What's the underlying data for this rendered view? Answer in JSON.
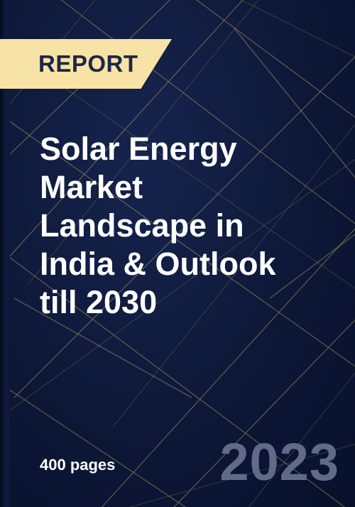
{
  "badge": {
    "label": "REPORT"
  },
  "title": {
    "lines": [
      "Solar Energy",
      "Market",
      "Landscape in",
      "India & Outlook",
      "till 2030"
    ]
  },
  "meta": {
    "pages": "400 pages",
    "year": "2023"
  },
  "colors": {
    "background": "#0d1838",
    "badge": "#f6e3a5",
    "badge_text": "#1c2748",
    "title_text": "#ffffff",
    "year_text": "#616a86",
    "line_gold": "#c9a95a"
  }
}
